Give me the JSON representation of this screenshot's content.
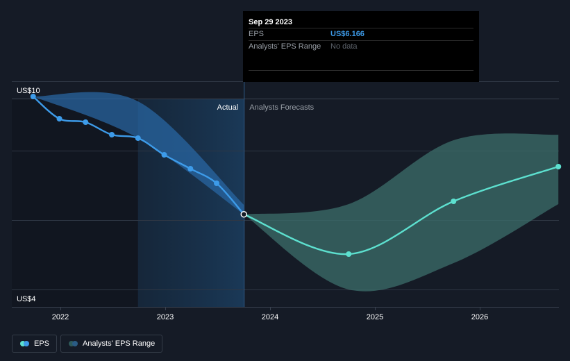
{
  "chart_data": {
    "type": "line",
    "y_axis": {
      "top_label": "US$10",
      "bottom_label": "US$4",
      "ylim": [
        4,
        10
      ],
      "gridlines": [
        4,
        6,
        8,
        10
      ]
    },
    "x_axis": {
      "ticks": [
        "2022",
        "2023",
        "2024",
        "2025",
        "2026"
      ],
      "tick_values": [
        2022,
        2023,
        2024,
        2025,
        2026
      ],
      "xlim": [
        2021.8,
        2026.75
      ]
    },
    "section_labels": {
      "actual": "Actual",
      "forecast": "Analysts Forecasts"
    },
    "divider_x": 2023.75,
    "highlight_start": 2022.74,
    "series": [
      {
        "name": "EPS",
        "color": "#3d9be9",
        "points": [
          {
            "x": 2021.74,
            "y": 9.56
          },
          {
            "x": 2021.99,
            "y": 8.92
          },
          {
            "x": 2022.24,
            "y": 8.82
          },
          {
            "x": 2022.49,
            "y": 8.46
          },
          {
            "x": 2022.74,
            "y": 8.36
          },
          {
            "x": 2022.99,
            "y": 7.88
          },
          {
            "x": 2023.24,
            "y": 7.48
          },
          {
            "x": 2023.49,
            "y": 7.06
          },
          {
            "x": 2023.75,
            "y": 6.166
          }
        ]
      },
      {
        "name": "EPS Forecast",
        "color": "#5de0cf",
        "points": [
          {
            "x": 2023.75,
            "y": 6.166
          },
          {
            "x": 2024.75,
            "y": 5.02
          },
          {
            "x": 2025.75,
            "y": 6.54
          },
          {
            "x": 2026.75,
            "y": 7.54
          }
        ]
      }
    ],
    "range_actual": {
      "name": "Analysts' EPS Range",
      "upper": [
        [
          2021.74,
          9.56
        ],
        [
          2022.74,
          9.42
        ],
        [
          2023.75,
          6.44
        ]
      ],
      "lower": [
        [
          2021.74,
          9.56
        ],
        [
          2022.74,
          8.36
        ],
        [
          2023.75,
          6.166
        ]
      ]
    },
    "range_forecast": {
      "name": "Analysts' EPS Range",
      "upper": [
        [
          2023.75,
          6.166
        ],
        [
          2024.75,
          6.46
        ],
        [
          2025.75,
          8.3
        ],
        [
          2026.75,
          8.46
        ]
      ],
      "lower": [
        [
          2023.75,
          6.166
        ],
        [
          2024.75,
          4.0
        ],
        [
          2025.75,
          4.76
        ],
        [
          2026.75,
          6.46
        ]
      ]
    }
  },
  "tooltip": {
    "date": "Sep 29 2023",
    "eps_label": "EPS",
    "eps_value": "US$6.166",
    "range_label": "Analysts' EPS Range",
    "range_value": "No data"
  },
  "legend": {
    "eps_label": "EPS",
    "range_label": "Analysts' EPS Range"
  },
  "colors": {
    "background": "#151b26",
    "eps": "#3d9be9",
    "forecast": "#5de0cf",
    "range_forecast": "#2e5a5a",
    "grid": "#2f3744"
  }
}
